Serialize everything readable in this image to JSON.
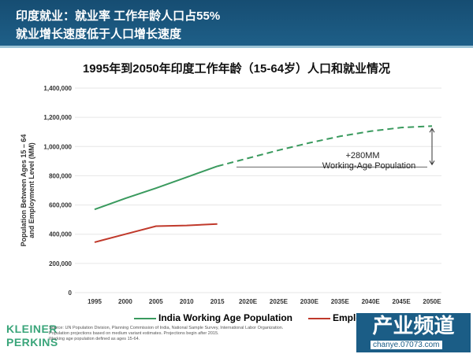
{
  "header": {
    "line1": "印度就业：就业率 工作年龄人口占55%",
    "line2": "就业增长速度低于人口增长速度"
  },
  "chart_data": {
    "type": "line",
    "title": "1995年到2050年印度工作年龄（15-64岁）人口和就业情况",
    "ylabel_line1": "Population Between Ages 15 – 64",
    "ylabel_line2": "and Employment Level (MM)",
    "xlabel": "",
    "categories": [
      "1995",
      "2000",
      "2005",
      "2010",
      "2015",
      "2020E",
      "2025E",
      "2030E",
      "2035E",
      "2040E",
      "2045E",
      "2050E"
    ],
    "yticks": [
      "0",
      "200,000",
      "400,000",
      "600,000",
      "800,000",
      "1,000,000",
      "1,200,000",
      "1,400,000"
    ],
    "ylim": [
      0,
      1400000
    ],
    "grid": true,
    "legend_placement": "bottom",
    "series": [
      {
        "name": "India Working Age Population",
        "color": "#3a9a5e",
        "values": [
          570000,
          645000,
          715000,
          790000,
          865000,
          920000,
          975000,
          1025000,
          1070000,
          1105000,
          1130000,
          1140000
        ],
        "projected_from": "2015"
      },
      {
        "name": "Employment",
        "color": "#c0392b",
        "values": [
          345000,
          400000,
          455000,
          460000,
          470000,
          null,
          null,
          null,
          null,
          null,
          null,
          null
        ]
      }
    ],
    "annotation": {
      "line1": "+280MM",
      "line2": "Working-Age Population",
      "from": 860000,
      "to": 1140000,
      "at": "2050E"
    }
  },
  "footer": {
    "logo_line1": "KLEINER",
    "logo_line2": "PERKINS",
    "source": "Source: UN Population Division, Planning Commission of India, National Sample Survey, International Labor Organization.",
    "note1": "Population projections based on medium variant estimates. Projections begin after 2015.",
    "note2": "Working age population defined as ages 15-64."
  },
  "watermark": {
    "text": "产业频道",
    "url": "chanye.07073.com"
  }
}
